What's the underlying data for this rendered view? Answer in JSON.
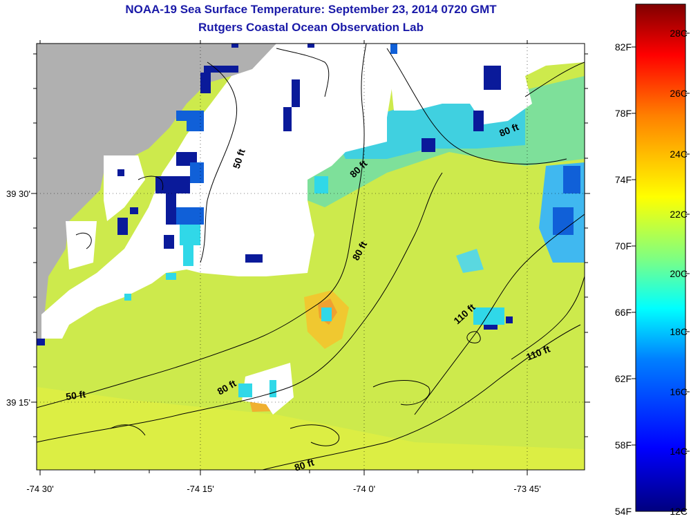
{
  "title": {
    "line1": "NOAA-19 Sea Surface Temperature:  September 23, 2014 0720 GMT",
    "line2": "Rutgers Coastal Ocean Observation Lab"
  },
  "axes": {
    "x_ticks": [
      "-74 30'",
      "-74 15'",
      "-74 0'",
      "-73 45'"
    ],
    "y_ticks": [
      "39 30'",
      "39 15'"
    ]
  },
  "contour_labels": [
    "50 ft",
    "80 ft",
    "80 ft",
    "80 ft",
    "110 ft",
    "110 ft",
    "80 ft",
    "50 ft",
    "80 ft"
  ],
  "colorbar": {
    "fahrenheit": [
      "82F",
      "78F",
      "74F",
      "70F",
      "66F",
      "62F",
      "58F",
      "54F"
    ],
    "celsius": [
      "28C",
      "26C",
      "24C",
      "22C",
      "20C",
      "18C",
      "16C",
      "14C",
      "12C"
    ],
    "colors": [
      "#00007f",
      "#0000ff",
      "#0080ff",
      "#00ffff",
      "#80ff80",
      "#ffff00",
      "#ff8000",
      "#ff0000",
      "#7f0000"
    ]
  },
  "map_colors": {
    "land": "#b0b0b0",
    "cloud": "#ffffff",
    "warm_water": "#e0f040",
    "mid_water": "#c8ec50",
    "cool_water": "#40d8e8",
    "cold_water": "#0a1a9a"
  }
}
